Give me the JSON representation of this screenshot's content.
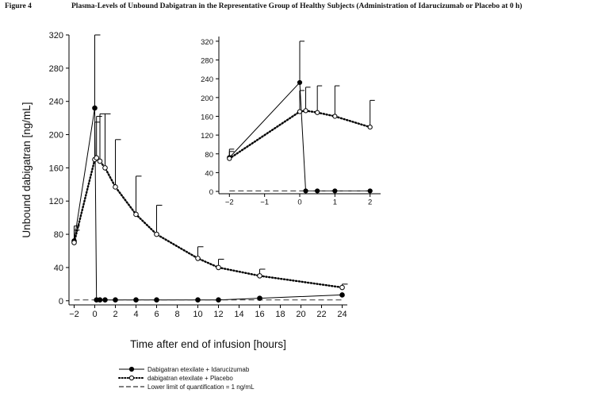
{
  "figure": {
    "label": "Figure 4",
    "title": "Plasma-Levels of Unbound Dabigatran in the Representative Group of Healthy Subjects (Administration of Idarucizumab or Placebo at 0 h)"
  },
  "legend": {
    "items": [
      {
        "label": "Dabigatran etexilate + Idarucizumab",
        "style": "solid-filled"
      },
      {
        "label": "dabigatran etexilate + Placebo",
        "style": "dotted-open"
      },
      {
        "label": "Lower limit of quantification = 1 ng/mL",
        "style": "dashed"
      }
    ]
  },
  "chart_data": [
    {
      "type": "line",
      "title": "",
      "xlabel": "Time after end of infusion [hours]",
      "ylabel": "Unbound dabigatran [ng/mL]",
      "xlim": [
        -2.5,
        24.5
      ],
      "ylim": [
        -5,
        320
      ],
      "xticks": [
        -2,
        0,
        2,
        4,
        6,
        8,
        10,
        12,
        14,
        16,
        18,
        20,
        22,
        24
      ],
      "yticks": [
        0,
        40,
        80,
        120,
        160,
        200,
        240,
        280,
        320
      ],
      "grid": false,
      "series": [
        {
          "name": "Dabigatran etexilate + Idarucizumab",
          "marker": "filled-circle",
          "line": "solid",
          "color": "#000000",
          "x": [
            -2,
            0,
            0.17,
            0.5,
            1,
            2,
            4,
            6,
            10,
            12,
            16,
            24
          ],
          "y": [
            72,
            232,
            1,
            1,
            1,
            1,
            1,
            1,
            1,
            1,
            3,
            7
          ],
          "err_up": [
            90,
            320,
            null,
            null,
            null,
            null,
            null,
            null,
            null,
            null,
            null,
            null
          ]
        },
        {
          "name": "dabigatran etexilate + Placebo",
          "marker": "open-circle",
          "line": "dotted",
          "color": "#000000",
          "x": [
            -2,
            0,
            0.17,
            0.5,
            1,
            2,
            4,
            6,
            10,
            12,
            16,
            24
          ],
          "y": [
            70,
            170,
            172,
            168,
            160,
            137,
            104,
            80,
            51,
            40,
            30,
            16
          ],
          "err_up": [
            85,
            215,
            222,
            225,
            225,
            194,
            150,
            115,
            65,
            50,
            38,
            20
          ]
        },
        {
          "name": "Lower limit of quantification = 1 ng/mL",
          "line": "dashed",
          "color": "#333333",
          "x": [
            -2,
            24
          ],
          "y": [
            1,
            1
          ]
        }
      ]
    },
    {
      "type": "line",
      "title": "",
      "xlabel": "",
      "ylabel": "",
      "xlim": [
        -2.3,
        2.3
      ],
      "ylim": [
        -5,
        330
      ],
      "xticks": [
        -2,
        -1,
        0,
        1,
        2
      ],
      "yticks": [
        0,
        40,
        80,
        120,
        160,
        200,
        240,
        280,
        320
      ],
      "grid": false,
      "series": [
        {
          "name": "Dabigatran etexilate + Idarucizumab",
          "marker": "filled-circle",
          "line": "solid",
          "color": "#000000",
          "x": [
            -2,
            0,
            0.17,
            0.5,
            1,
            2
          ],
          "y": [
            72,
            232,
            1,
            1,
            1,
            1
          ],
          "err_up": [
            90,
            320,
            null,
            null,
            null,
            null
          ]
        },
        {
          "name": "dabigatran etexilate + Placebo",
          "marker": "open-circle",
          "line": "dotted",
          "color": "#000000",
          "x": [
            -2,
            0,
            0.17,
            0.5,
            1,
            2
          ],
          "y": [
            70,
            170,
            172,
            168,
            160,
            137
          ],
          "err_up": [
            85,
            215,
            222,
            225,
            225,
            194
          ]
        },
        {
          "name": "Lower limit of quantification = 1 ng/mL",
          "line": "dashed",
          "color": "#333333",
          "x": [
            -2,
            2
          ],
          "y": [
            1,
            1
          ]
        }
      ]
    }
  ]
}
